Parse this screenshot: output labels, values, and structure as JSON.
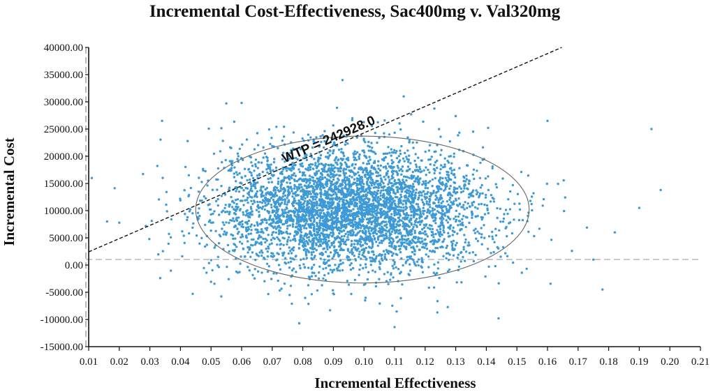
{
  "chart_data": {
    "type": "scatter",
    "title": "Incremental Cost-Effectiveness, Sac400mg v. Val320mg",
    "xlabel": "Incremental Effectiveness",
    "ylabel": "Incremental Cost",
    "xlim": [
      0.01,
      0.21
    ],
    "ylim": [
      -15000,
      40000
    ],
    "x_ticks": [
      "0.01",
      "0.02",
      "0.03",
      "0.04",
      "0.05",
      "0.06",
      "0.07",
      "0.08",
      "0.09",
      "0.10",
      "0.11",
      "0.12",
      "0.13",
      "0.14",
      "0.15",
      "0.16",
      "0.17",
      "0.18",
      "0.19",
      "0.20",
      "0.21"
    ],
    "y_ticks": [
      "-15000.00",
      "-10000.00",
      "-5000.00",
      "0.00",
      "5000.00",
      "10000.00",
      "15000.00",
      "20000.00",
      "25000.00",
      "30000.00",
      "35000.00",
      "40000.00"
    ],
    "wtp": {
      "label": "WTP = 242928.0",
      "value": 242928.0
    },
    "confidence_ellipse": {
      "center_x": 0.0995,
      "center_y": 10200,
      "half_width_x": 0.0545,
      "half_height_y": 13500
    },
    "point_color": "#3d9ad6",
    "sample_distribution": {
      "n": 4500,
      "mean_x": 0.095,
      "sd_x": 0.022,
      "mean_y": 10200,
      "sd_y": 5600
    },
    "outliers": [
      {
        "x": 0.011,
        "y": 16000
      },
      {
        "x": 0.016,
        "y": 8000
      },
      {
        "x": 0.02,
        "y": 7800
      },
      {
        "x": 0.034,
        "y": 26500
      },
      {
        "x": 0.055,
        "y": 29700
      },
      {
        "x": 0.06,
        "y": 29800
      },
      {
        "x": 0.093,
        "y": 34000
      },
      {
        "x": 0.113,
        "y": 31000
      },
      {
        "x": 0.16,
        "y": 26500
      },
      {
        "x": 0.178,
        "y": -4500
      },
      {
        "x": 0.182,
        "y": 6000
      },
      {
        "x": 0.194,
        "y": 25000
      },
      {
        "x": 0.197,
        "y": 13800
      },
      {
        "x": 0.144,
        "y": -9800
      },
      {
        "x": 0.11,
        "y": -11400
      },
      {
        "x": 0.124,
        "y": -8700
      },
      {
        "x": 0.044,
        "y": -5300
      },
      {
        "x": 0.19,
        "y": 10500
      },
      {
        "x": 0.175,
        "y": 1000
      },
      {
        "x": 0.168,
        "y": 2600
      }
    ]
  }
}
